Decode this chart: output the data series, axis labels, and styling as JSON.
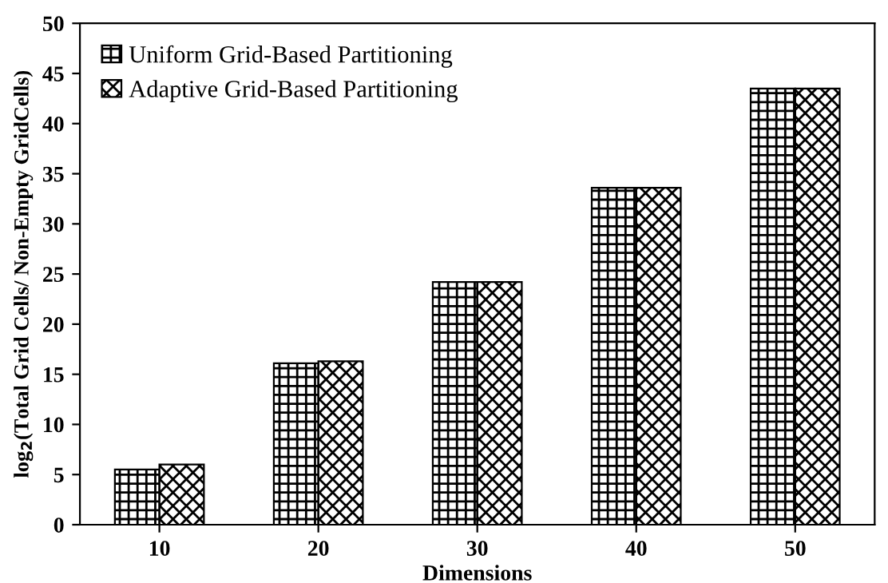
{
  "chart_data": {
    "type": "bar",
    "xlabel": "Dimensions",
    "ylabel": "log$_{2}$(Total Grid Cells/ Non-Empty GridCells)",
    "categories": [
      "10",
      "20",
      "30",
      "40",
      "50"
    ],
    "series": [
      {
        "name": "Uniform Grid-Based Partitioning",
        "color": "#000000",
        "values": [
          5.5,
          16.1,
          24.2,
          33.6,
          43.5
        ]
      },
      {
        "name": "Adaptive Grid-Based Partitioning",
        "color": "#000000",
        "values": [
          6.0,
          16.3,
          24.2,
          33.6,
          43.5
        ]
      }
    ],
    "ylim": [
      0,
      50
    ],
    "yticks": [
      0,
      5,
      10,
      15,
      20,
      25,
      30,
      35,
      40,
      45,
      50
    ],
    "grid": false,
    "legend": "top left"
  }
}
